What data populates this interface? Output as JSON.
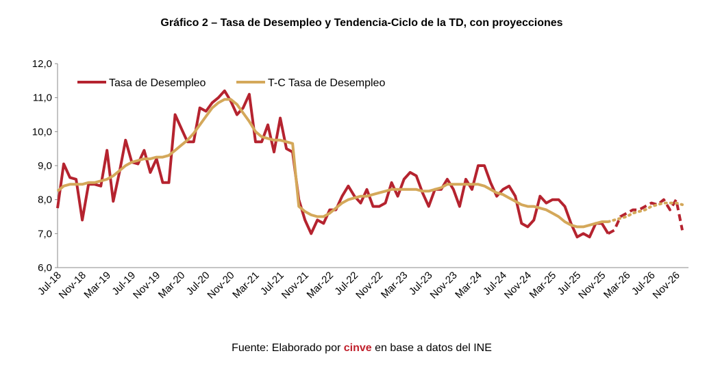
{
  "chart_data": {
    "type": "line",
    "title": "Gráfico 2 – Tasa de Desempleo y Tendencia-Ciclo de la TD, con proyecciones",
    "source": {
      "prefix": "Fuente: Elaborado por ",
      "highlight": "cinve",
      "suffix": " en base a datos del INE"
    },
    "categories": [
      "Jul-18",
      null,
      null,
      null,
      "Nov-18",
      null,
      null,
      null,
      "Mar-19",
      null,
      null,
      null,
      "Jul-19",
      null,
      null,
      null,
      "Nov-19",
      null,
      null,
      null,
      "Mar-20",
      null,
      null,
      null,
      "Jul-20",
      null,
      null,
      null,
      "Nov-20",
      null,
      null,
      null,
      "Mar-21",
      null,
      null,
      null,
      "Jul-21",
      null,
      null,
      null,
      "Nov-21",
      null,
      null,
      null,
      "Mar-22",
      null,
      null,
      null,
      "Jul-22",
      null,
      null,
      null,
      "Nov-22",
      null,
      null,
      null,
      "Mar-23",
      null,
      null,
      null,
      "Jul-23",
      null,
      null,
      null,
      "Nov-23",
      null,
      null,
      null,
      "Mar-24",
      null,
      null,
      null,
      "Jul-24",
      null,
      null,
      null,
      "Nov-24",
      null,
      null,
      null,
      "Mar-25",
      null,
      null,
      null,
      "Jul-25",
      null,
      null,
      null,
      "Nov-25",
      null,
      null,
      null,
      "Mar-26",
      null,
      null,
      null,
      "Jul-26",
      null,
      null,
      null,
      "Nov-26",
      null
    ],
    "series": [
      {
        "name": "Tasa de Desempleo",
        "color": "#b5232f",
        "forecast_style": "dashed",
        "values": [
          7.75,
          9.05,
          8.65,
          8.6,
          7.4,
          8.45,
          8.45,
          8.4,
          9.45,
          7.95,
          8.8,
          9.75,
          9.1,
          9.05,
          9.45,
          8.8,
          9.2,
          8.5,
          8.5,
          10.5,
          10.1,
          9.7,
          9.7,
          10.7,
          10.6,
          10.85,
          11.0,
          11.2,
          10.9,
          10.5,
          10.7,
          11.1,
          9.7,
          9.7,
          10.2,
          9.4,
          10.4,
          9.5,
          9.4,
          8.0,
          7.4,
          7.0,
          7.4,
          7.3,
          7.7,
          7.7,
          8.1,
          8.4,
          8.1,
          7.9,
          8.3,
          7.8,
          7.8,
          7.9,
          8.5,
          8.1,
          8.6,
          8.8,
          8.7,
          8.2,
          7.8,
          8.3,
          8.3,
          8.6,
          8.3,
          7.8,
          8.6,
          8.3,
          9.0,
          9.0,
          8.5,
          8.1,
          8.3,
          8.4,
          8.1,
          7.3,
          7.2,
          7.4,
          8.1,
          7.9,
          8.0,
          8.0,
          7.8,
          7.3,
          6.9,
          7.0,
          6.9,
          7.3,
          7.3,
          7.0,
          null,
          null,
          null,
          null,
          null,
          null,
          null,
          null,
          null,
          null,
          null,
          null
        ],
        "forecast": [
          null,
          null,
          null,
          null,
          null,
          null,
          null,
          null,
          null,
          null,
          null,
          null,
          null,
          null,
          null,
          null,
          null,
          null,
          null,
          null,
          null,
          null,
          null,
          null,
          null,
          null,
          null,
          null,
          null,
          null,
          null,
          null,
          null,
          null,
          null,
          null,
          null,
          null,
          null,
          null,
          null,
          null,
          null,
          null,
          null,
          null,
          null,
          null,
          null,
          null,
          null,
          null,
          null,
          null,
          null,
          null,
          null,
          null,
          null,
          null,
          null,
          null,
          null,
          null,
          null,
          null,
          null,
          null,
          null,
          null,
          null,
          null,
          null,
          null,
          null,
          null,
          null,
          null,
          null,
          null,
          null,
          null,
          null,
          null,
          null,
          null,
          null,
          null,
          null,
          7.0,
          7.1,
          7.5,
          7.6,
          7.7,
          7.7,
          7.8,
          7.9,
          7.85,
          8.0,
          7.7,
          8.0,
          7.1
        ]
      },
      {
        "name": "T-C Tasa de Desempleo",
        "color": "#d4a85a",
        "forecast_style": "dotted",
        "values": [
          8.25,
          8.4,
          8.45,
          8.45,
          8.45,
          8.5,
          8.5,
          8.55,
          8.6,
          8.7,
          8.85,
          9.0,
          9.1,
          9.15,
          9.2,
          9.2,
          9.25,
          9.25,
          9.3,
          9.45,
          9.6,
          9.75,
          9.95,
          10.2,
          10.45,
          10.7,
          10.85,
          10.95,
          10.95,
          10.8,
          10.55,
          10.3,
          10.0,
          9.85,
          9.8,
          9.75,
          9.75,
          9.7,
          9.65,
          7.8,
          7.65,
          7.55,
          7.5,
          7.5,
          7.6,
          7.75,
          7.9,
          8.0,
          8.05,
          8.1,
          8.1,
          8.15,
          8.2,
          8.25,
          8.3,
          8.3,
          8.3,
          8.3,
          8.3,
          8.25,
          8.25,
          8.3,
          8.35,
          8.45,
          8.45,
          8.45,
          8.45,
          8.45,
          8.45,
          8.4,
          8.3,
          8.2,
          8.15,
          8.05,
          7.95,
          7.85,
          7.8,
          7.8,
          7.75,
          7.7,
          7.6,
          7.5,
          7.35,
          7.25,
          7.2,
          7.2,
          7.25,
          7.3,
          7.35,
          7.35,
          null,
          null,
          null,
          null,
          null,
          null,
          null,
          null,
          null,
          null,
          null,
          null
        ],
        "forecast": [
          null,
          null,
          null,
          null,
          null,
          null,
          null,
          null,
          null,
          null,
          null,
          null,
          null,
          null,
          null,
          null,
          null,
          null,
          null,
          null,
          null,
          null,
          null,
          null,
          null,
          null,
          null,
          null,
          null,
          null,
          null,
          null,
          null,
          null,
          null,
          null,
          null,
          null,
          null,
          null,
          null,
          null,
          null,
          null,
          null,
          null,
          null,
          null,
          null,
          null,
          null,
          null,
          null,
          null,
          null,
          null,
          null,
          null,
          null,
          null,
          null,
          null,
          null,
          null,
          null,
          null,
          null,
          null,
          null,
          null,
          null,
          null,
          null,
          null,
          null,
          null,
          null,
          null,
          null,
          null,
          null,
          null,
          null,
          null,
          null,
          null,
          null,
          null,
          null,
          7.35,
          7.4,
          7.45,
          7.5,
          7.6,
          7.65,
          7.7,
          7.8,
          7.85,
          7.9,
          7.9,
          7.9,
          7.85
        ]
      }
    ],
    "ylim": [
      6,
      12
    ],
    "yticks": [
      {
        "value": 6,
        "label": "6,0"
      },
      {
        "value": 7,
        "label": "7,0"
      },
      {
        "value": 8,
        "label": "8,0"
      },
      {
        "value": 9,
        "label": "9,0"
      },
      {
        "value": 10,
        "label": "10,0"
      },
      {
        "value": 11,
        "label": "11,0"
      },
      {
        "value": 12,
        "label": "12,0"
      }
    ],
    "grid": false,
    "legend": "top-left"
  }
}
